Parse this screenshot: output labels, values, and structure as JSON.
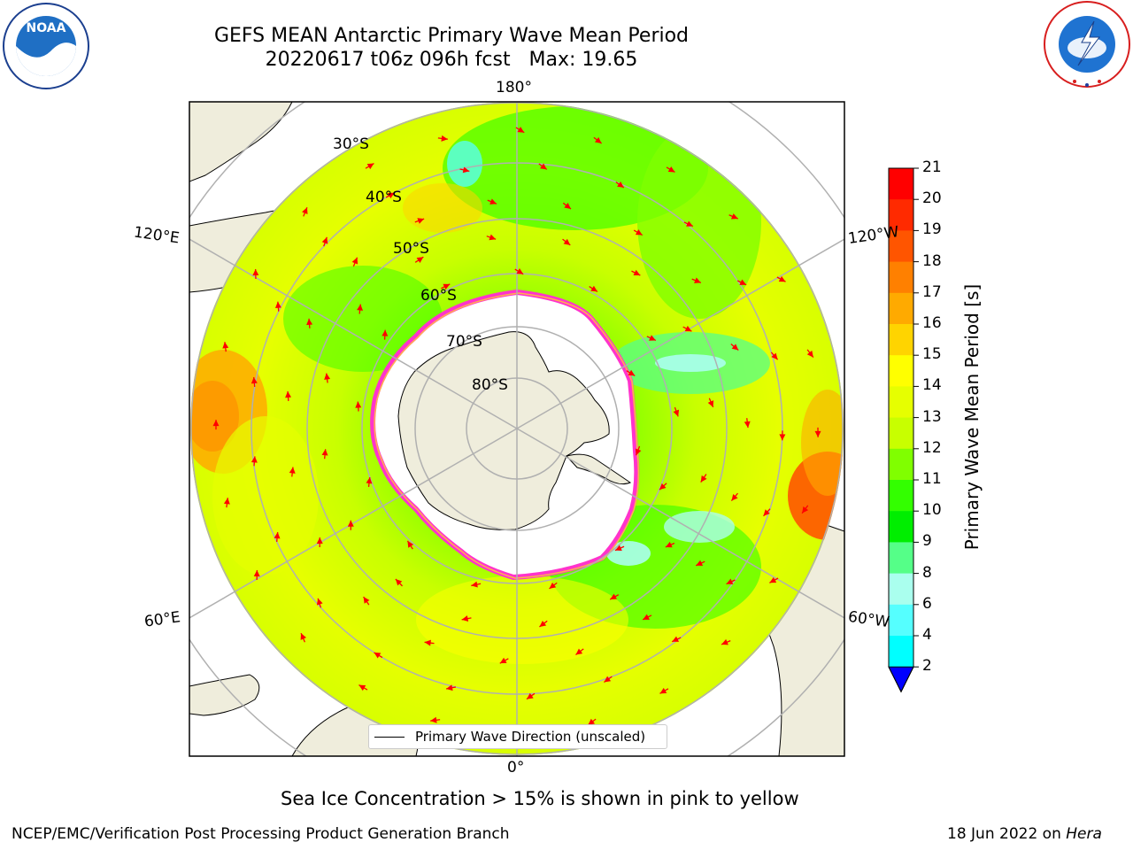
{
  "title": {
    "line1": "GEFS MEAN Antarctic Primary Wave Mean Period",
    "line2": "20220617 t06z 096h fcst   Max: 19.65"
  },
  "map": {
    "projection": "south-polar-stereographic",
    "longitude_labels": {
      "top": "180°",
      "bottom": "0°",
      "upper_left": "120°E",
      "lower_left": "60°E",
      "upper_right": "120°W",
      "lower_right": "60°W"
    },
    "latitude_labels": [
      "30°S",
      "40°S",
      "50°S",
      "60°S",
      "70°S",
      "80°S"
    ],
    "legend_label": "Primary Wave Direction (unscaled)",
    "colors": {
      "land": "#efeddc",
      "sea_ice": "#ffffff",
      "ice_edge": "#ff33cc",
      "ice_edge_outer": "#ffb24d",
      "arrows": "#ff0000",
      "gridlines": "#b0b0b0"
    }
  },
  "colorbar": {
    "label": "Primary Wave Mean Period [s]",
    "ticks": [
      "21",
      "20",
      "19",
      "18",
      "17",
      "16",
      "15",
      "14",
      "13",
      "12",
      "11",
      "10",
      "9",
      "8",
      "6",
      "4",
      "2"
    ],
    "colors": [
      "#ff0000",
      "#ff2a00",
      "#ff5500",
      "#ff8000",
      "#ffaa00",
      "#ffd400",
      "#ffff00",
      "#e6ff00",
      "#c8ff00",
      "#80ff00",
      "#33ff00",
      "#00ee00",
      "#55ff88",
      "#aaffee",
      "#55ffff",
      "#00ffff",
      "#00aaff",
      "#0000ff"
    ],
    "extend_min_color": "#0000ff"
  },
  "caption": "Sea Ice Concentration > 15% is shown in pink to yellow",
  "footer": {
    "left": "NCEP/EMC/Verification Post Processing Product Generation Branch",
    "right_prefix": "18 Jun 2022 on ",
    "right_machine": "Hera"
  },
  "logos": {
    "left": "NOAA",
    "left_ring": "NATIONAL OCEANIC AND ATMOSPHERIC ADMINISTRATION",
    "left_ring_bottom": "U.S. DEPARTMENT OF COMMERCE",
    "right_ring": "NATIONAL WEATHER SERVICE"
  }
}
